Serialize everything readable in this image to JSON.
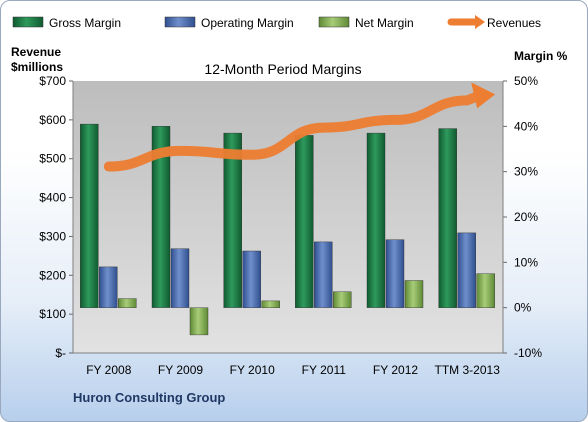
{
  "chart_data": {
    "type": "bar",
    "title": "12-Month Period Margins",
    "categories": [
      "FY 2008",
      "FY 2009",
      "FY 2010",
      "FY 2011",
      "FY 2012",
      "TTM 3-2013"
    ],
    "series": [
      {
        "name": "Gross Margin",
        "axis": "right",
        "unit": "%",
        "values": [
          40.5,
          40.0,
          38.5,
          38.0,
          38.5,
          39.5
        ],
        "color": "#1f7a45"
      },
      {
        "name": "Operating Margin",
        "axis": "right",
        "unit": "%",
        "values": [
          9.0,
          13.0,
          12.5,
          14.5,
          15.0,
          16.5
        ],
        "color": "#4a6fb3"
      },
      {
        "name": "Net Margin",
        "axis": "right",
        "unit": "%",
        "values": [
          2.0,
          -6.0,
          1.5,
          3.5,
          6.0,
          7.5
        ],
        "color": "#8db35c"
      },
      {
        "name": "Revenues",
        "axis": "left",
        "type": "line",
        "unit": "$millions",
        "values": [
          480,
          520,
          510,
          580,
          600,
          650
        ],
        "color": "#ed7d31"
      }
    ],
    "left_axis": {
      "title_line1": "Revenue",
      "title_line2": "$millions",
      "ylim": [
        0,
        700
      ],
      "ticks": [
        "$-",
        "$100",
        "$200",
        "$300",
        "$400",
        "$500",
        "$600",
        "$700"
      ]
    },
    "right_axis": {
      "title": "Margin %",
      "ylim": [
        -10,
        50
      ],
      "ticks": [
        "-10%",
        "0%",
        "10%",
        "20%",
        "30%",
        "40%",
        "50%"
      ]
    },
    "grid": false,
    "legend_position": "top"
  },
  "footer": "Huron Consulting Group"
}
